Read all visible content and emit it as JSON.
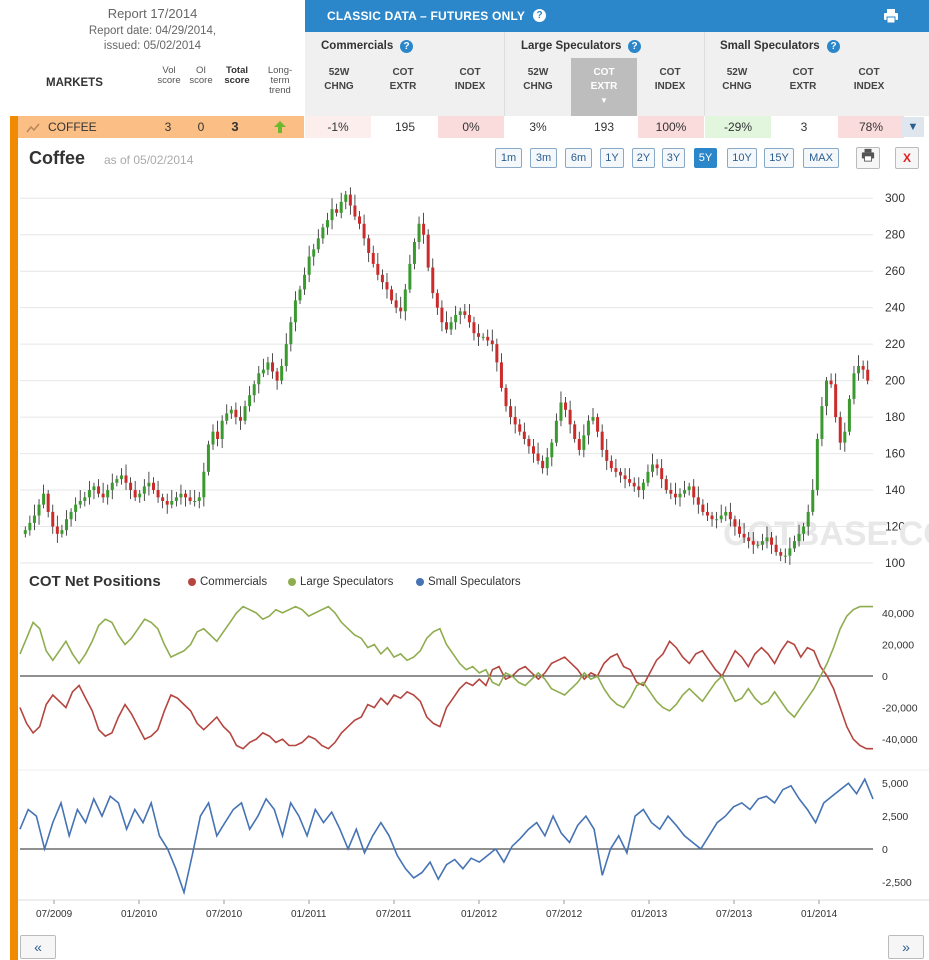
{
  "header": {
    "report_title": "Report 17/2014",
    "report_date": "Report date: 04/29/2014,",
    "issued": "issued: 05/02/2014",
    "markets_label": "MARKETS",
    "col_vol": "Vol score",
    "col_oi": "OI score",
    "col_total": "Total score",
    "col_trend": "Long-term trend",
    "banner_title": "CLASSIC DATA – FUTURES ONLY",
    "groups": [
      "Commercials",
      "Large Speculators",
      "Small Speculators"
    ],
    "subcols": [
      [
        "52W",
        "CHNG"
      ],
      [
        "COT",
        "EXTR"
      ],
      [
        "COT",
        "INDEX"
      ]
    ]
  },
  "row": {
    "market": "COFFEE",
    "vol": "3",
    "oi": "0",
    "total": "3",
    "cells": [
      {
        "value": "-1%",
        "bg": "#fdeeee"
      },
      {
        "value": "195",
        "bg": "#ffffff"
      },
      {
        "value": "0%",
        "bg": "#fbdcdc"
      },
      {
        "value": "3%",
        "bg": "#ffffff"
      },
      {
        "value": "193",
        "bg": "#ffffff"
      },
      {
        "value": "100%",
        "bg": "#fbdcdc"
      },
      {
        "value": "-29%",
        "bg": "#e2f6dd"
      },
      {
        "value": "3",
        "bg": "#ffffff"
      },
      {
        "value": "78%",
        "bg": "#fbdcdc"
      }
    ]
  },
  "toolbar": {
    "title": "Coffee",
    "as_of": "as of 05/02/2014",
    "ranges": [
      "1m",
      "3m",
      "6m",
      "1Y",
      "2Y",
      "3Y",
      "5Y",
      "10Y",
      "15Y",
      "MAX"
    ],
    "active_range": "5Y",
    "close_label": "X"
  },
  "legend": {
    "title": "COT Net Positions",
    "items": [
      {
        "label": "Commercials",
        "color": "#b5453f"
      },
      {
        "label": "Large Speculators",
        "color": "#8fad4f"
      },
      {
        "label": "Small Speculators",
        "color": "#4573b4"
      }
    ]
  },
  "nav": {
    "prev": "«",
    "next": "»"
  },
  "watermark": "COTBASE.COM",
  "chart_data": [
    {
      "type": "candlestick",
      "title": "Coffee",
      "ylim": [
        100,
        310
      ],
      "y_ticks": [
        100,
        120,
        140,
        160,
        180,
        200,
        220,
        240,
        260,
        280,
        300
      ],
      "colors": {
        "up": "#3a9a2f",
        "down": "#cc2b2b"
      },
      "x_ticks": [
        "07/2009",
        "01/2010",
        "07/2010",
        "01/2011",
        "07/2011",
        "01/2012",
        "07/2012",
        "01/2013",
        "07/2013",
        "01/2014"
      ],
      "close_weekly_approx": [
        118,
        122,
        126,
        132,
        138,
        128,
        120,
        116,
        118,
        124,
        128,
        132,
        134,
        136,
        140,
        142,
        138,
        136,
        140,
        144,
        146,
        148,
        144,
        140,
        136,
        138,
        142,
        144,
        140,
        136,
        134,
        132,
        134,
        136,
        138,
        136,
        134,
        134,
        136,
        150,
        165,
        172,
        168,
        178,
        182,
        184,
        180,
        178,
        186,
        192,
        198,
        204,
        206,
        210,
        205,
        200,
        208,
        220,
        232,
        244,
        250,
        258,
        268,
        272,
        278,
        284,
        288,
        294,
        292,
        298,
        302,
        296,
        290,
        286,
        278,
        270,
        264,
        258,
        254,
        250,
        244,
        240,
        238,
        250,
        264,
        276,
        286,
        280,
        262,
        248,
        240,
        232,
        228,
        232,
        236,
        238,
        236,
        232,
        226,
        224,
        224,
        222,
        220,
        210,
        196,
        186,
        180,
        176,
        172,
        168,
        164,
        160,
        156,
        152,
        158,
        166,
        178,
        188,
        184,
        176,
        168,
        162,
        170,
        178,
        180,
        172,
        162,
        156,
        152,
        150,
        148,
        146,
        144,
        142,
        140,
        144,
        150,
        154,
        152,
        146,
        140,
        138,
        136,
        138,
        140,
        142,
        136,
        132,
        128,
        126,
        124,
        124,
        126,
        128,
        124,
        120,
        116,
        114,
        112,
        110,
        110,
        112,
        114,
        110,
        106,
        104,
        104,
        108,
        112,
        116,
        120,
        128,
        140,
        168,
        186,
        200,
        198,
        180,
        166,
        172,
        190,
        204,
        208,
        206,
        200
      ]
    },
    {
      "type": "line",
      "title": "COT Net Positions",
      "ylim": [
        -50000,
        45000
      ],
      "y_ticks": [
        -40000,
        -20000,
        0,
        20000,
        40000
      ],
      "y_tick_labels": [
        "-40,000",
        "-20,000",
        "0",
        "20,000",
        "40,000"
      ],
      "series": [
        {
          "name": "Commercials",
          "color": "#b5453f",
          "values_approx": [
            -20000,
            -30000,
            -36000,
            -32000,
            -18000,
            -12000,
            -16000,
            -20000,
            -10000,
            -6000,
            -14000,
            -22000,
            -34000,
            -38000,
            -36000,
            -26000,
            -18000,
            -24000,
            -32000,
            -40000,
            -38000,
            -34000,
            -22000,
            -12000,
            -14000,
            -18000,
            -22000,
            -30000,
            -34000,
            -30000,
            -26000,
            -32000,
            -36000,
            -44000,
            -46000,
            -42000,
            -40000,
            -36000,
            -38000,
            -42000,
            -40000,
            -44000,
            -44000,
            -42000,
            -38000,
            -40000,
            -44000,
            -46000,
            -42000,
            -36000,
            -32000,
            -28000,
            -26000,
            -18000,
            -20000,
            -14000,
            -18000,
            -12000,
            -14000,
            -10000,
            -12000,
            -16000,
            -26000,
            -30000,
            -32000,
            -20000,
            -14000,
            -8000,
            -4000,
            -6000,
            -2000,
            -6000,
            4000,
            6000,
            -2000,
            0,
            4000,
            6000,
            2000,
            -2000,
            2000,
            8000,
            10000,
            12000,
            8000,
            4000,
            -2000,
            2000,
            0,
            8000,
            12000,
            14000,
            6000,
            4000,
            -4000,
            -6000,
            2000,
            10000,
            14000,
            22000,
            18000,
            12000,
            8000,
            14000,
            16000,
            10000,
            4000,
            0,
            8000,
            16000,
            12000,
            6000,
            14000,
            18000,
            14000,
            8000,
            16000,
            22000,
            20000,
            12000,
            18000,
            16000,
            6000,
            0,
            -8000,
            -20000,
            -32000,
            -40000,
            -44000,
            -46000,
            -46000
          ]
        },
        {
          "name": "Large Speculators",
          "color": "#8fad4f",
          "values_approx": [
            14000,
            24000,
            34000,
            30000,
            16000,
            10000,
            16000,
            22000,
            14000,
            8000,
            14000,
            22000,
            32000,
            36000,
            34000,
            26000,
            20000,
            24000,
            30000,
            36000,
            34000,
            30000,
            20000,
            12000,
            14000,
            16000,
            20000,
            28000,
            30000,
            26000,
            22000,
            28000,
            34000,
            40000,
            44000,
            42000,
            40000,
            36000,
            38000,
            42000,
            40000,
            42000,
            44000,
            42000,
            38000,
            40000,
            42000,
            44000,
            40000,
            34000,
            30000,
            26000,
            24000,
            18000,
            20000,
            14000,
            18000,
            12000,
            14000,
            10000,
            12000,
            16000,
            24000,
            28000,
            30000,
            20000,
            14000,
            8000,
            4000,
            6000,
            2000,
            4000,
            -4000,
            -6000,
            2000,
            0,
            -4000,
            -6000,
            -2000,
            2000,
            -2000,
            -8000,
            -10000,
            -12000,
            -8000,
            -4000,
            2000,
            -2000,
            0,
            -8000,
            -14000,
            -18000,
            -20000,
            -14000,
            -6000,
            -4000,
            -10000,
            -16000,
            -20000,
            -22000,
            -18000,
            -12000,
            -8000,
            -12000,
            -16000,
            -10000,
            -4000,
            0,
            -8000,
            -16000,
            -14000,
            -8000,
            -14000,
            -18000,
            -16000,
            -10000,
            -16000,
            -22000,
            -26000,
            -20000,
            -14000,
            -8000,
            0,
            8000,
            18000,
            30000,
            38000,
            42000,
            44000,
            44000,
            44000
          ]
        },
        {
          "name": "Small Speculators",
          "color": "#4573b4",
          "values_approx": [
            1500,
            3000,
            2500,
            0,
            2000,
            3500,
            1000,
            3000,
            2000,
            3800,
            2500,
            4000,
            3500,
            1500,
            3000,
            2000,
            3500,
            1000,
            0,
            -1500,
            -3300,
            -500,
            2500,
            3500,
            1000,
            2000,
            3000,
            3500,
            1500,
            2500,
            3800,
            3000,
            1000,
            3500,
            2500,
            1000,
            3000,
            2000,
            2800,
            1500,
            0,
            1500,
            -300,
            1000,
            2000,
            1000,
            -500,
            -1500,
            -2200,
            -1800,
            -1000,
            -2300,
            -1200,
            -800,
            -1500,
            -700,
            -1000,
            -500,
            0,
            -1000,
            200,
            800,
            1500,
            2000,
            1000,
            2500,
            1200,
            500,
            1800,
            2500,
            1500,
            -2000,
            0,
            1000,
            -300,
            2500,
            3000,
            2000,
            1500,
            2500,
            1800,
            1000,
            500,
            0,
            1000,
            2000,
            2500,
            3200,
            3500,
            3000,
            3800,
            4000,
            3500,
            4500,
            4800,
            3800,
            3000,
            2000,
            3500,
            4000,
            4500,
            5000,
            4200,
            5300,
            3800
          ]
        }
      ]
    }
  ]
}
